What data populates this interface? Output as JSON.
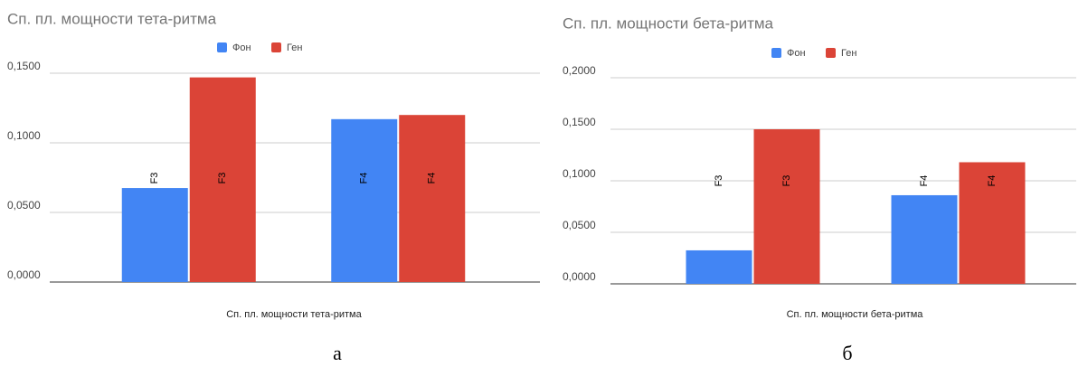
{
  "chart_data": [
    {
      "type": "bar",
      "title": "Сп. пл. мощности тета-ритма",
      "x_label": "Сп. пл. мощности тета-ритма",
      "categories": [
        "F3",
        "F4"
      ],
      "series": [
        {
          "name": "Фон",
          "color": "#4285f4",
          "values": [
            0.0675,
            0.117
          ]
        },
        {
          "name": "Ген",
          "color": "#db4437",
          "values": [
            0.147,
            0.12
          ]
        }
      ],
      "ylim": [
        0,
        0.15
      ],
      "yticks": [
        {
          "value": 0,
          "label": "0,0000"
        },
        {
          "value": 0.05,
          "label": "0,0500"
        },
        {
          "value": 0.1,
          "label": "0,1000"
        },
        {
          "value": 0.15,
          "label": "0,1500"
        }
      ],
      "grid": true,
      "legend": "top"
    },
    {
      "type": "bar",
      "title": "Сп. пл. мощности бета-ритма",
      "x_label": "Сп. пл. мощности бета-ритма",
      "categories": [
        "F3",
        "F4"
      ],
      "series": [
        {
          "name": "Фон",
          "color": "#4285f4",
          "values": [
            0.0325,
            0.086
          ]
        },
        {
          "name": "Ген",
          "color": "#db4437",
          "values": [
            0.15,
            0.118
          ]
        }
      ],
      "ylim": [
        0,
        0.2
      ],
      "yticks": [
        {
          "value": 0,
          "label": "0,0000"
        },
        {
          "value": 0.05,
          "label": "0,0500"
        },
        {
          "value": 0.1,
          "label": "0,1000"
        },
        {
          "value": 0.15,
          "label": "0,1500"
        },
        {
          "value": 0.2,
          "label": "0,2000"
        }
      ],
      "grid": true,
      "legend": "top"
    }
  ],
  "captions": [
    "а",
    "б"
  ]
}
